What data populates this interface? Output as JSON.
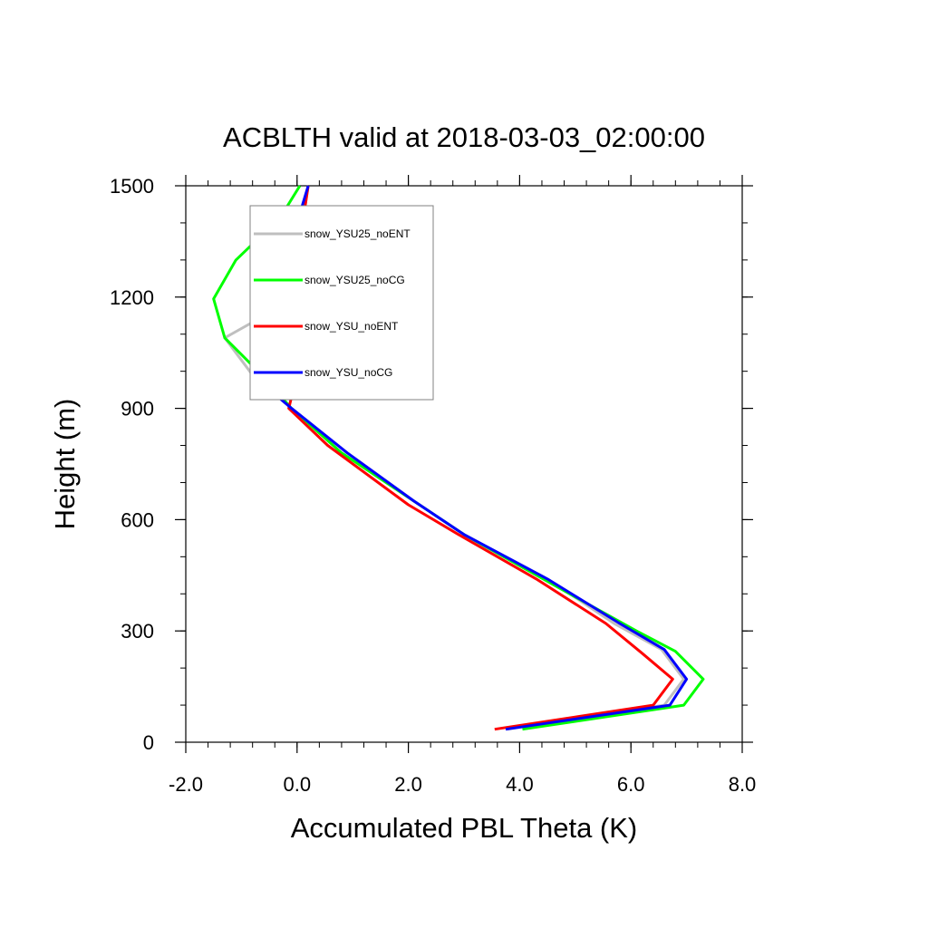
{
  "chart_data": {
    "type": "line",
    "title": "ACBLTH valid at 2018-03-03_02:00:00",
    "xlabel": "Accumulated PBL Theta (K)",
    "ylabel": "Height (m)",
    "xlim": [
      -2.0,
      8.0
    ],
    "ylim": [
      0,
      1500
    ],
    "xticks": [
      -2.0,
      0.0,
      2.0,
      4.0,
      6.0,
      8.0
    ],
    "xtick_labels": [
      "-2.0",
      "0.0",
      "2.0",
      "4.0",
      "6.0",
      "8.0"
    ],
    "yticks": [
      0,
      300,
      600,
      900,
      1200,
      1500
    ],
    "ytick_labels": [
      "0",
      "300",
      "600",
      "900",
      "1200",
      "1500"
    ],
    "grid": false,
    "legend_position": "top-left",
    "series": [
      {
        "name": "snow_YSU25_noENT",
        "color": "#bfbfbf",
        "points": [
          [
            3.78,
            35
          ],
          [
            6.6,
            100
          ],
          [
            6.95,
            170
          ],
          [
            6.55,
            250
          ],
          [
            5.7,
            320
          ],
          [
            4.5,
            440
          ],
          [
            3.0,
            560
          ],
          [
            2.1,
            650
          ],
          [
            0.9,
            780
          ],
          [
            -0.1,
            900
          ],
          [
            -0.8,
            990
          ],
          [
            -1.3,
            1090
          ],
          [
            -0.05,
            1195
          ],
          [
            0.0,
            1300
          ],
          [
            0.1,
            1400
          ],
          [
            0.2,
            1500
          ]
        ]
      },
      {
        "name": "snow_YSU25_noCG",
        "color": "#00ff00",
        "points": [
          [
            4.05,
            35
          ],
          [
            6.95,
            100
          ],
          [
            7.3,
            170
          ],
          [
            6.8,
            245
          ],
          [
            6.1,
            300
          ],
          [
            4.9,
            400
          ],
          [
            3.0,
            560
          ],
          [
            2.3,
            630
          ],
          [
            0.8,
            780
          ],
          [
            -0.1,
            900
          ],
          [
            -0.7,
            1000
          ],
          [
            -1.3,
            1090
          ],
          [
            -1.5,
            1195
          ],
          [
            -1.1,
            1300
          ],
          [
            -0.3,
            1415
          ],
          [
            0.05,
            1500
          ]
        ]
      },
      {
        "name": "snow_YSU_noENT",
        "color": "#ff0000",
        "points": [
          [
            3.55,
            35
          ],
          [
            6.4,
            100
          ],
          [
            6.75,
            170
          ],
          [
            6.2,
            240
          ],
          [
            5.55,
            320
          ],
          [
            4.3,
            440
          ],
          [
            2.9,
            560
          ],
          [
            2.0,
            640
          ],
          [
            0.55,
            800
          ],
          [
            -0.15,
            900
          ],
          [
            -0.05,
            960
          ],
          [
            -0.1,
            1090
          ],
          [
            0.05,
            1195
          ],
          [
            0.1,
            1300
          ],
          [
            0.1,
            1400
          ],
          [
            0.2,
            1500
          ]
        ]
      },
      {
        "name": "snow_YSU_noCG",
        "color": "#0000ff",
        "points": [
          [
            3.75,
            35
          ],
          [
            6.7,
            100
          ],
          [
            7.0,
            170
          ],
          [
            6.6,
            250
          ],
          [
            5.8,
            320
          ],
          [
            4.5,
            440
          ],
          [
            3.0,
            560
          ],
          [
            2.1,
            650
          ],
          [
            0.9,
            780
          ],
          [
            -0.1,
            900
          ],
          [
            -0.8,
            990
          ],
          [
            -0.7,
            1090
          ],
          [
            -0.55,
            1195
          ],
          [
            -0.2,
            1300
          ],
          [
            0.0,
            1400
          ],
          [
            0.2,
            1500
          ]
        ]
      }
    ]
  }
}
